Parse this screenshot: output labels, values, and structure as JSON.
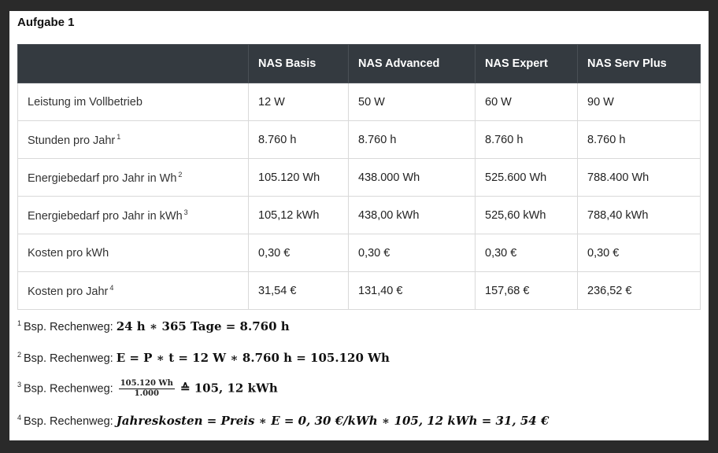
{
  "title": "Aufgabe 1",
  "table": {
    "headers": [
      "",
      "NAS Basis",
      "NAS Advanced",
      "NAS Expert",
      "NAS Serv Plus"
    ],
    "rows": [
      {
        "label": "Leistung im Vollbetrieb",
        "sup": "",
        "cells": [
          "12 W",
          "50 W",
          "60 W",
          "90 W"
        ]
      },
      {
        "label": "Stunden pro Jahr",
        "sup": "1",
        "cells": [
          "8.760 h",
          "8.760 h",
          "8.760 h",
          "8.760 h"
        ]
      },
      {
        "label": "Energiebedarf pro Jahr in Wh",
        "sup": "2",
        "cells": [
          "105.120 Wh",
          "438.000 Wh",
          "525.600 Wh",
          "788.400 Wh"
        ]
      },
      {
        "label": "Energiebedarf pro Jahr in kWh",
        "sup": "3",
        "cells": [
          "105,12 kWh",
          "438,00 kWh",
          "525,60 kWh",
          "788,40 kWh"
        ]
      },
      {
        "label": "Kosten pro kWh",
        "sup": "",
        "cells": [
          "0,30 €",
          "0,30 €",
          "0,30 €",
          "0,30 €"
        ]
      },
      {
        "label": "Kosten pro Jahr",
        "sup": "4",
        "cells": [
          "31,54 €",
          "131,40 €",
          "157,68 €",
          "236,52 €"
        ]
      }
    ]
  },
  "notes": [
    {
      "num": "1",
      "prefix": "Bsp. Rechenweg:",
      "formula": "24 h ∗ 365 Tage = 8.760 h"
    },
    {
      "num": "2",
      "prefix": "Bsp. Rechenweg:",
      "formula": "E = P ∗ t = 12 W ∗ 8.760 h = 105.120 Wh"
    },
    {
      "num": "3",
      "prefix": "Bsp. Rechenweg:",
      "frac_num": "105.120 Wh",
      "frac_den": "1.000",
      "formula": "≙ 105, 12 kWh"
    },
    {
      "num": "4",
      "prefix": "Bsp. Rechenweg:",
      "formula": "Jahreskosten = Preis ∗ E = 0, 30 €/kWh ∗ 105, 12 kWh = 31, 54 €"
    }
  ]
}
